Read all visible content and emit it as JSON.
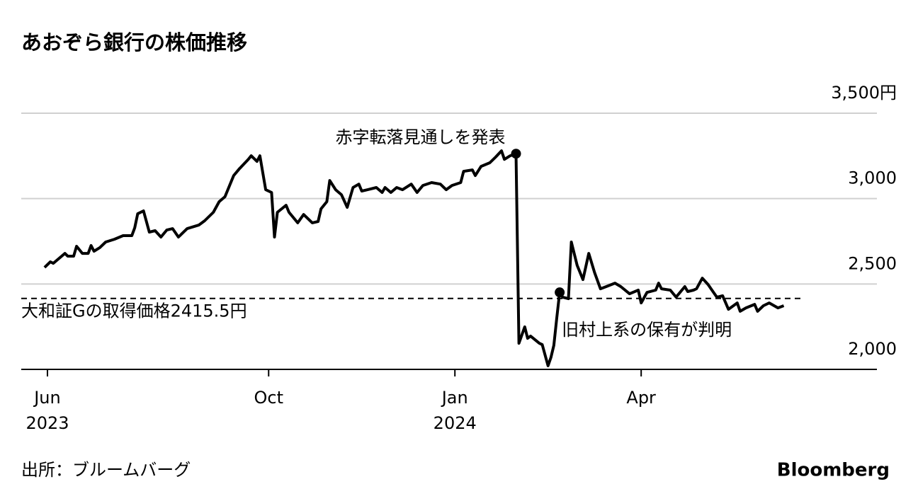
{
  "chart_data": {
    "type": "line",
    "title": "あおぞら銀行の株価推移",
    "source": "出所：ブルームバーグ",
    "brand": "Bloomberg",
    "xlim": [
      -8,
      286
    ],
    "xticks": [
      {
        "value": 1,
        "label": "Jun"
      },
      {
        "value": 77,
        "label": "Oct"
      },
      {
        "value": 141,
        "label": "Jan"
      },
      {
        "value": 205,
        "label": "Apr"
      }
    ],
    "xtick_years": [
      {
        "value": 1,
        "label": "2023"
      },
      {
        "value": 141,
        "label": "2024"
      }
    ],
    "ylim": [
      2000,
      3500
    ],
    "yticks": [
      {
        "value": 2000,
        "label": "2,000"
      },
      {
        "value": 2500,
        "label": "2,500"
      },
      {
        "value": 3000,
        "label": "3,000"
      },
      {
        "value": 3500,
        "label": "3,500円"
      }
    ],
    "grid": true,
    "reference_line": {
      "value": 2415.5,
      "label": "大和証Gの取得価格2415.5円"
    },
    "annotations": [
      {
        "x": 162,
        "text": "赤字転落見通しを発表"
      },
      {
        "x": 177,
        "text": "旧村上系の保有が判明"
      }
    ],
    "series": [
      {
        "name": "あおぞら銀行",
        "color": "#000000",
        "x": [
          0,
          2,
          3,
          7,
          8,
          10,
          11,
          13,
          15,
          16,
          17,
          19,
          21,
          24,
          27,
          30,
          31,
          32,
          34,
          36,
          38,
          40,
          42,
          44,
          46,
          49,
          53,
          55,
          58,
          60,
          62,
          65,
          67,
          70,
          71,
          73,
          74,
          76,
          78,
          79,
          80,
          83,
          84,
          87,
          89,
          92,
          94,
          95,
          97,
          98,
          100,
          102,
          104,
          106,
          108,
          109,
          111,
          114,
          116,
          117,
          119,
          121,
          123,
          126,
          128,
          130,
          133,
          136,
          138,
          140,
          143,
          144,
          147,
          148,
          150,
          153,
          155,
          157,
          158,
          160,
          162,
          163,
          165,
          166,
          167,
          170,
          171,
          173,
          174,
          175,
          176,
          177,
          178,
          180,
          181,
          183,
          185,
          187,
          189,
          191,
          193,
          196,
          198,
          201,
          204,
          205,
          207,
          210,
          211,
          212,
          215,
          217,
          220,
          221,
          223,
          224,
          226,
          228,
          229,
          231,
          233,
          235,
          238,
          239,
          241,
          244,
          245,
          247,
          249,
          252,
          254
        ],
        "values": [
          2597,
          2630,
          2621,
          2679,
          2663,
          2663,
          2721,
          2679,
          2679,
          2725,
          2692,
          2713,
          2746,
          2762,
          2783,
          2783,
          2829,
          2911,
          2928,
          2804,
          2812,
          2775,
          2816,
          2824,
          2775,
          2824,
          2845,
          2870,
          2920,
          2982,
          3011,
          3135,
          3176,
          3230,
          3251,
          3218,
          3251,
          3052,
          3036,
          2775,
          2920,
          2961,
          2920,
          2858,
          2907,
          2858,
          2866,
          2940,
          2982,
          3106,
          3052,
          3023,
          2949,
          3065,
          3085,
          3044,
          3052,
          3065,
          3036,
          3065,
          3036,
          3065,
          3052,
          3085,
          3036,
          3077,
          3094,
          3085,
          3052,
          3077,
          3094,
          3160,
          3168,
          3135,
          3189,
          3210,
          3243,
          3280,
          3230,
          3251,
          3263,
          2153,
          2249,
          2182,
          2195,
          2153,
          2145,
          2021,
          2070,
          2141,
          2300,
          2451,
          2423,
          2414,
          2746,
          2609,
          2526,
          2679,
          2567,
          2472,
          2485,
          2505,
          2485,
          2443,
          2464,
          2389,
          2451,
          2464,
          2505,
          2472,
          2464,
          2423,
          2485,
          2456,
          2464,
          2472,
          2534,
          2497,
          2472,
          2423,
          2431,
          2352,
          2389,
          2340,
          2360,
          2381,
          2340,
          2373,
          2389,
          2360,
          2373
        ]
      }
    ]
  }
}
